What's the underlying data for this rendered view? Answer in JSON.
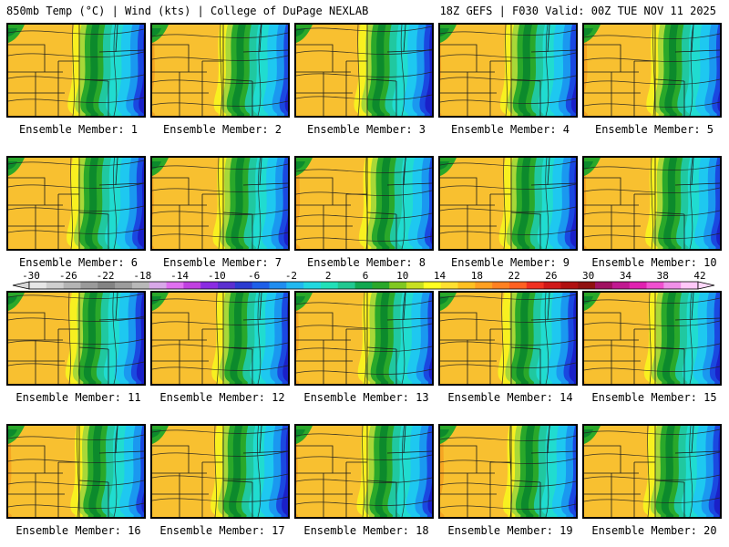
{
  "header": {
    "left": "850mb Temp (°C) | Wind (kts) | College of DuPage NEXLAB",
    "right": "18Z GEFS | F030 Valid: 00Z TUE NOV 11 2025"
  },
  "panel_label_prefix": "Ensemble Member:",
  "members": [
    {
      "id": 1,
      "label": "Ensemble Member: 1"
    },
    {
      "id": 2,
      "label": "Ensemble Member: 2"
    },
    {
      "id": 3,
      "label": "Ensemble Member: 3"
    },
    {
      "id": 4,
      "label": "Ensemble Member: 4"
    },
    {
      "id": 5,
      "label": "Ensemble Member: 5"
    },
    {
      "id": 6,
      "label": "Ensemble Member: 6"
    },
    {
      "id": 7,
      "label": "Ensemble Member: 7"
    },
    {
      "id": 8,
      "label": "Ensemble Member: 8"
    },
    {
      "id": 9,
      "label": "Ensemble Member: 9"
    },
    {
      "id": 10,
      "label": "Ensemble Member: 10"
    },
    {
      "id": 11,
      "label": "Ensemble Member: 11"
    },
    {
      "id": 12,
      "label": "Ensemble Member: 12"
    },
    {
      "id": 13,
      "label": "Ensemble Member: 13"
    },
    {
      "id": 14,
      "label": "Ensemble Member: 14"
    },
    {
      "id": 15,
      "label": "Ensemble Member: 15"
    },
    {
      "id": 16,
      "label": "Ensemble Member: 16"
    },
    {
      "id": 17,
      "label": "Ensemble Member: 17"
    },
    {
      "id": 18,
      "label": "Ensemble Member: 18"
    },
    {
      "id": 19,
      "label": "Ensemble Member: 19"
    },
    {
      "id": 20,
      "label": "Ensemble Member: 20"
    }
  ],
  "colorbar": {
    "labels": [
      "-30",
      "-26",
      "-22",
      "-18",
      "-14",
      "-10",
      "-6",
      "-2",
      "2",
      "6",
      "10",
      "14",
      "18",
      "22",
      "26",
      "30",
      "34",
      "38",
      "42"
    ],
    "colors": [
      "#e6e6e6",
      "#cfcfcf",
      "#b4b4b4",
      "#9a9a9a",
      "#838383",
      "#9c9c9c",
      "#b8b8b8",
      "#d8a8e8",
      "#e070f0",
      "#c040e0",
      "#8a2be2",
      "#5b2fd0",
      "#2b3bd0",
      "#1e5fe8",
      "#1f8df0",
      "#20b8f0",
      "#20d8e0",
      "#20e0b8",
      "#20c890",
      "#10a850",
      "#2aa82a",
      "#80c820",
      "#c8e020",
      "#ffff20",
      "#ffe030",
      "#ffc020",
      "#ffa020",
      "#ff8020",
      "#ff6020",
      "#f03020",
      "#d01818",
      "#b01010",
      "#901010",
      "#a01060",
      "#c01890",
      "#e020b0",
      "#f050d0",
      "#f090e8",
      "#ffc8f8"
    ],
    "arrow_left_color": "#d8d8d8",
    "arrow_right_color": "#ffd8fa"
  },
  "temperature_palette": {
    "orange": "#f5a623",
    "gold": "#f8c030",
    "dark_orange": "#f08a1c",
    "yellow": "#f8f020",
    "lime": "#a8d838",
    "green": "#2aa82a",
    "dark_green": "#0c8a2c",
    "teal": "#20c8a0",
    "aqua": "#20dcd0",
    "cyan": "#1ec8f0",
    "sky": "#1a98f0",
    "blue": "#1a48e0",
    "navy": "#1a20c8"
  }
}
